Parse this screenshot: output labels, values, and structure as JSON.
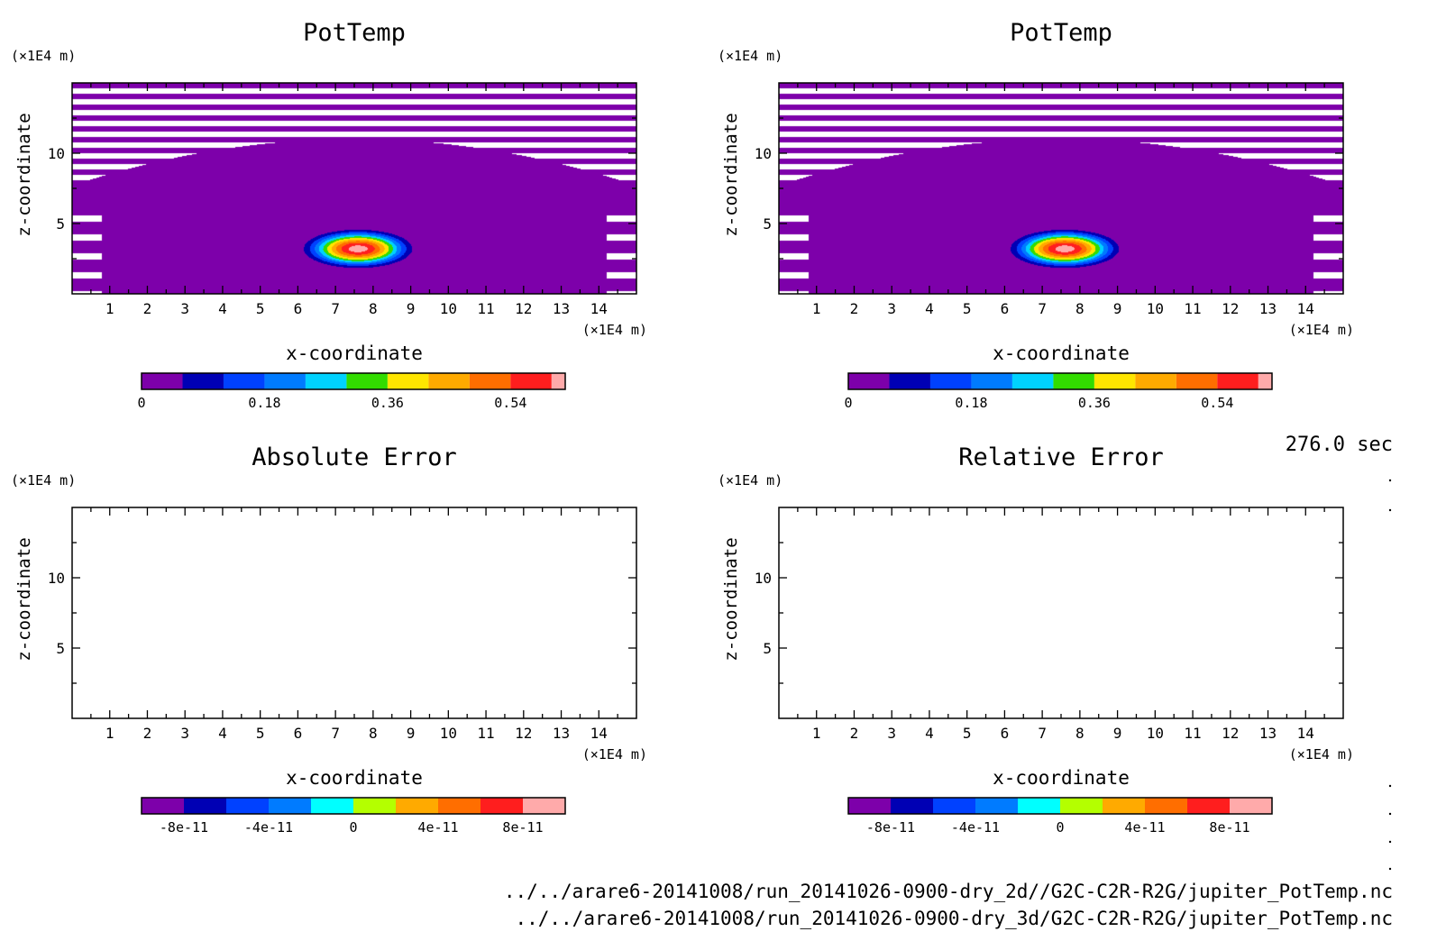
{
  "time_label": "276.0 sec",
  "footer_lines": [
    "../../arare6-20141008/run_20141026-0900-dry_2d//G2C-C2R-R2G/jupiter_PotTemp.nc",
    "../../arare6-20141008/run_20141026-0900-dry_3d/G2C-C2R-R2G/jupiter_PotTemp.nc"
  ],
  "chart_data": [
    {
      "type": "heatmap",
      "title": "PotTemp",
      "xlabel": "x-coordinate",
      "ylabel": "z-coordinate",
      "x_unit": "(×1E4 m)",
      "y_unit": "(×1E4 m)",
      "xlim": [
        0,
        15
      ],
      "ylim": [
        0,
        15
      ],
      "x_ticks": [
        "1",
        "2",
        "3",
        "4",
        "5",
        "6",
        "7",
        "8",
        "9",
        "10",
        "11",
        "12",
        "13",
        "14"
      ],
      "y_ticks": [
        "5",
        "10"
      ],
      "bubble": {
        "center_x": 7.6,
        "center_z": 3.2,
        "radius_x": 1.8,
        "radius_z": 1.7,
        "peak": 0.63
      },
      "colorbar": {
        "levels": [
          0,
          0.06,
          0.12,
          0.18,
          0.24,
          0.3,
          0.36,
          0.42,
          0.48,
          0.54,
          0.6,
          0.62
        ],
        "colors": [
          "#7d00aa",
          "#0000b4",
          "#0041ff",
          "#007bff",
          "#00d2ff",
          "#32dc00",
          "#ffe600",
          "#ffaa00",
          "#ff6e00",
          "#ff1e1e",
          "#ffaaaa"
        ],
        "tick_labels": [
          "0",
          "0.18",
          "0.36",
          "0.54"
        ],
        "tick_values": [
          0,
          0.18,
          0.36,
          0.54
        ]
      }
    },
    {
      "type": "heatmap",
      "title": "PotTemp",
      "xlabel": "x-coordinate",
      "ylabel": "z-coordinate",
      "x_unit": "(×1E4 m)",
      "y_unit": "(×1E4 m)",
      "xlim": [
        0,
        15
      ],
      "ylim": [
        0,
        15
      ],
      "x_ticks": [
        "1",
        "2",
        "3",
        "4",
        "5",
        "6",
        "7",
        "8",
        "9",
        "10",
        "11",
        "12",
        "13",
        "14"
      ],
      "y_ticks": [
        "5",
        "10"
      ],
      "bubble": {
        "center_x": 7.6,
        "center_z": 3.2,
        "radius_x": 1.8,
        "radius_z": 1.7,
        "peak": 0.63
      },
      "colorbar": {
        "levels": [
          0,
          0.06,
          0.12,
          0.18,
          0.24,
          0.3,
          0.36,
          0.42,
          0.48,
          0.54,
          0.6,
          0.62
        ],
        "colors": [
          "#7d00aa",
          "#0000b4",
          "#0041ff",
          "#007bff",
          "#00d2ff",
          "#32dc00",
          "#ffe600",
          "#ffaa00",
          "#ff6e00",
          "#ff1e1e",
          "#ffaaaa"
        ],
        "tick_labels": [
          "0",
          "0.18",
          "0.36",
          "0.54"
        ],
        "tick_values": [
          0,
          0.18,
          0.36,
          0.54
        ]
      }
    },
    {
      "type": "heatmap",
      "title": "Absolute Error",
      "xlabel": "x-coordinate",
      "ylabel": "z-coordinate",
      "x_unit": "(×1E4 m)",
      "y_unit": "(×1E4 m)",
      "xlim": [
        0,
        15
      ],
      "ylim": [
        0,
        15
      ],
      "x_ticks": [
        "1",
        "2",
        "3",
        "4",
        "5",
        "6",
        "7",
        "8",
        "9",
        "10",
        "11",
        "12",
        "13",
        "14"
      ],
      "y_ticks": [
        "5",
        "10"
      ],
      "colorbar": {
        "levels": [
          -1e-10,
          -8e-11,
          -6e-11,
          -4e-11,
          -2e-11,
          0,
          2e-11,
          4e-11,
          6e-11,
          8e-11,
          1e-10
        ],
        "colors": [
          "#7d00aa",
          "#0000b4",
          "#0041ff",
          "#007bff",
          "#00ffff",
          "#b4ff00",
          "#ffaa00",
          "#ff6e00",
          "#ff1e1e",
          "#ffaaaa"
        ],
        "tick_labels": [
          "-8e-11",
          "-4e-11",
          "0",
          "4e-11",
          "8e-11"
        ],
        "tick_values": [
          -8e-11,
          -4e-11,
          0,
          4e-11,
          8e-11
        ]
      }
    },
    {
      "type": "heatmap",
      "title": "Relative Error",
      "xlabel": "x-coordinate",
      "ylabel": "z-coordinate",
      "x_unit": "(×1E4 m)",
      "y_unit": "(×1E4 m)",
      "xlim": [
        0,
        15
      ],
      "ylim": [
        0,
        15
      ],
      "x_ticks": [
        "1",
        "2",
        "3",
        "4",
        "5",
        "6",
        "7",
        "8",
        "9",
        "10",
        "11",
        "12",
        "13",
        "14"
      ],
      "y_ticks": [
        "5",
        "10"
      ],
      "colorbar": {
        "levels": [
          -1e-10,
          -8e-11,
          -6e-11,
          -4e-11,
          -2e-11,
          0,
          2e-11,
          4e-11,
          6e-11,
          8e-11,
          1e-10
        ],
        "colors": [
          "#7d00aa",
          "#0000b4",
          "#0041ff",
          "#007bff",
          "#00ffff",
          "#b4ff00",
          "#ffaa00",
          "#ff6e00",
          "#ff1e1e",
          "#ffaaaa"
        ],
        "tick_labels": [
          "-8e-11",
          "-4e-11",
          "0",
          "4e-11",
          "8e-11"
        ],
        "tick_values": [
          -8e-11,
          -4e-11,
          0,
          4e-11,
          8e-11
        ]
      }
    }
  ]
}
